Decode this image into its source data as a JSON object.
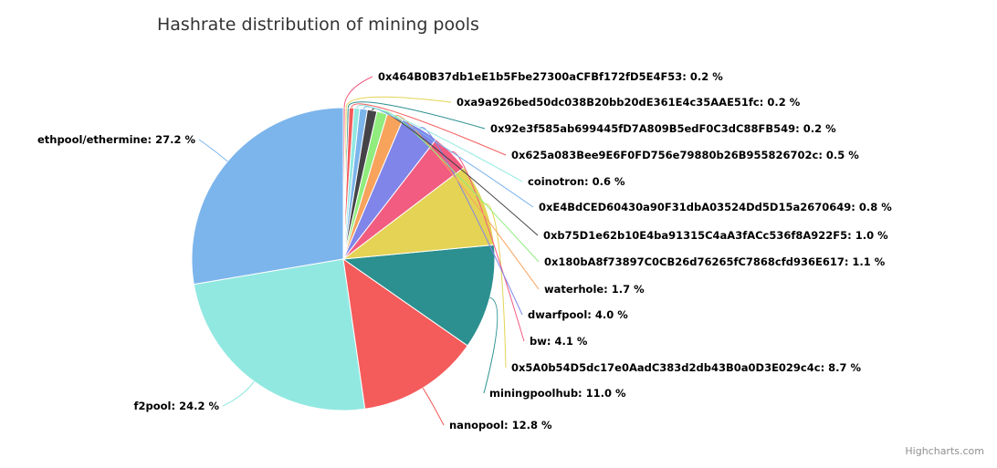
{
  "chart_data": {
    "type": "pie",
    "title": "Hashrate distribution of mining pools",
    "credits": "Highcharts.com",
    "slices": [
      {
        "name": "ethpool/ethermine",
        "value": 27.2,
        "color": "#7cb5ec"
      },
      {
        "name": "f2pool",
        "value": 24.2,
        "color": "#91e8e1"
      },
      {
        "name": "nanopool",
        "value": 12.8,
        "color": "#f45b5b"
      },
      {
        "name": "miningpoolhub",
        "value": 11.0,
        "color": "#2b908f"
      },
      {
        "name": "0x5A0b54D5dc17e0AadC383d2db43B0a0D3E029c4c",
        "value": 8.7,
        "color": "#e4d354"
      },
      {
        "name": "bw",
        "value": 4.1,
        "color": "#f15c80"
      },
      {
        "name": "dwarfpool",
        "value": 4.0,
        "color": "#8085e9"
      },
      {
        "name": "waterhole",
        "value": 1.7,
        "color": "#f7a35c"
      },
      {
        "name": "0x180bA8f73897C0CB26d76265fC7868cfd936E617",
        "value": 1.1,
        "color": "#90ed7d"
      },
      {
        "name": "0xb75D1e62b10E4ba91315C4aA3fACc536f8A922F5",
        "value": 1.0,
        "color": "#434348"
      },
      {
        "name": "0xE4BdCED60430a90F31dbA03524Dd5D15a2670649",
        "value": 0.8,
        "color": "#7cb5ec"
      },
      {
        "name": "coinotron",
        "value": 0.6,
        "color": "#91e8e1"
      },
      {
        "name": "0x625a083Bee9E6F0FD756e79880b26B955826702c",
        "value": 0.5,
        "color": "#f45b5b"
      },
      {
        "name": "0x92e3f585ab699445fD7A809B5edF0C3dC88FB549",
        "value": 0.2,
        "color": "#2b908f"
      },
      {
        "name": "0xa9a926bed50dc038B20bb20dE361E4c35AAE51fc",
        "value": 0.2,
        "color": "#e4d354"
      },
      {
        "name": "0x464B0B37db1eE1b5Fbe27300aCFBf172fD5E4F53",
        "value": 0.2,
        "color": "#f15c80"
      }
    ],
    "value_suffix": " %"
  }
}
